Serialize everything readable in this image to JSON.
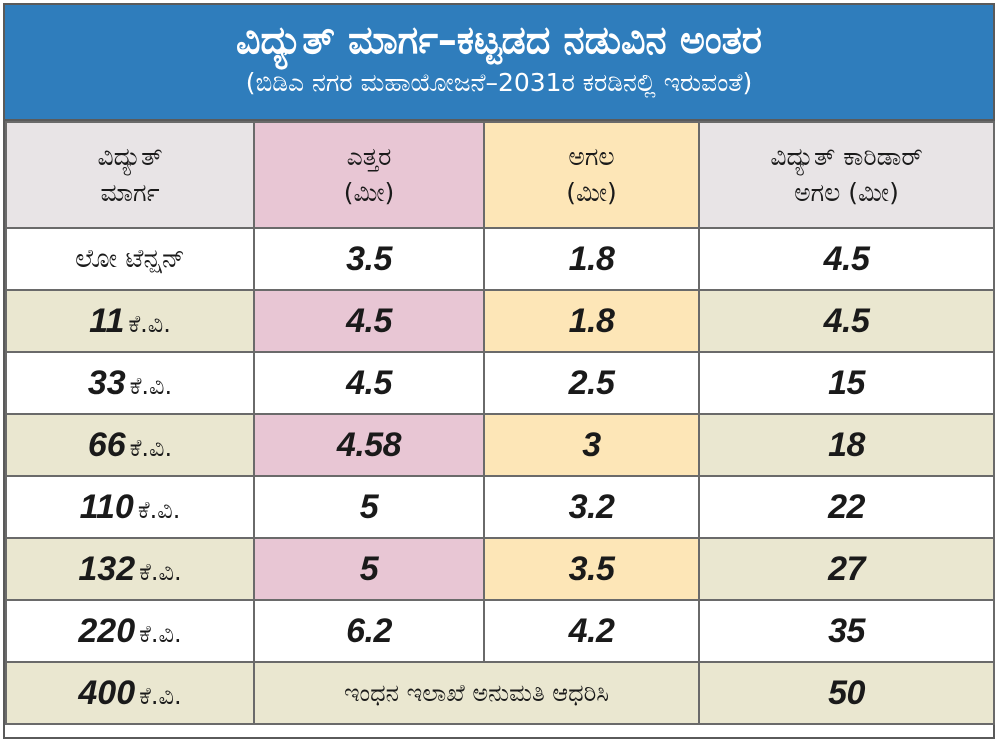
{
  "header": {
    "title": "ವಿದ್ಯುತ್ ಮಾರ್ಗ–ಕಟ್ಟಡದ ನಡುವಿನ ಅಂತರ",
    "subtitle": "(ಬಿಡಿಎ ನಗರ ಮಹಾಯೋಜನೆ–2031ರ ಕರಡಿನಲ್ಲಿ ಇರುವಂತೆ)"
  },
  "columns": [
    {
      "line1": "ವಿದ್ಯುತ್",
      "line2": "ಮಾರ್ಗ"
    },
    {
      "line1": "ಎತ್ತರ",
      "line2": "(ಮೀ)"
    },
    {
      "line1": "ಅಗಲ",
      "line2": "(ಮೀ)"
    },
    {
      "line1": "ವಿದ್ಯುತ್ ಕಾರಿಡಾರ್",
      "line2": "ಅಗಲ (ಮೀ)"
    }
  ],
  "unit": "ಕೆ.ವಿ.",
  "rows": [
    {
      "line": "ಲೋ ಟೆನ್ಷನ್",
      "height": "3.5",
      "width": "1.8",
      "corridor": "4.5"
    },
    {
      "line": "11",
      "height": "4.5",
      "width": "1.8",
      "corridor": "4.5"
    },
    {
      "line": "33",
      "height": "4.5",
      "width": "2.5",
      "corridor": "15"
    },
    {
      "line": "66",
      "height": "4.58",
      "width": "3",
      "corridor": "18"
    },
    {
      "line": "110",
      "height": "5",
      "width": "3.2",
      "corridor": "22"
    },
    {
      "line": "132",
      "height": "5",
      "width": "3.5",
      "corridor": "27"
    },
    {
      "line": "220",
      "height": "6.2",
      "width": "4.2",
      "corridor": "35"
    },
    {
      "line": "400",
      "note": "ಇಂಧನ ಇಲಾಖೆ ಅನುಮತಿ ಆಧರಿಸಿ",
      "corridor": "50"
    }
  ],
  "colors": {
    "header_bg": "#2f7dbc",
    "pink": "#e8c6d4",
    "yellow": "#fde6b7",
    "olive": "#eae7d0",
    "grey": "#e8e4e6"
  }
}
